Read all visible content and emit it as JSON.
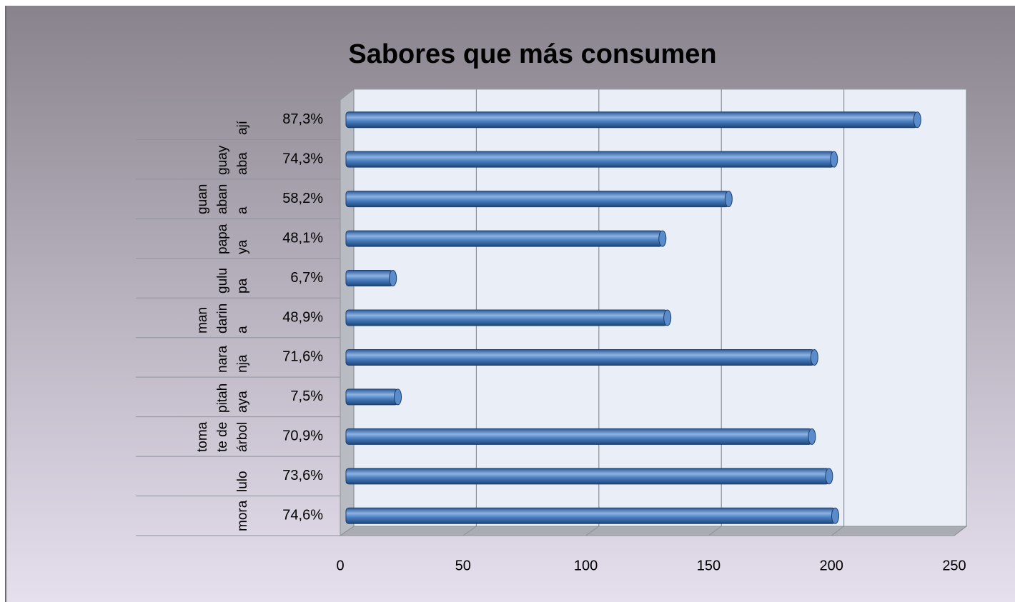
{
  "chart_data": {
    "type": "bar3d_horizontal",
    "title": "Sabores que más consumen",
    "categories": [
      "mora",
      "lulo",
      "tomate de árbol",
      "pitahaya",
      "naranja",
      "mandarina",
      "gulupa",
      "papaya",
      "guanabana",
      "guayaba",
      "ají"
    ],
    "values": [
      198.5,
      196,
      189,
      20,
      190,
      130,
      18,
      128,
      155,
      198,
      232
    ],
    "percent_labels": [
      "74,6%",
      "73,6%",
      "70,9%",
      "7,5%",
      "71,6%",
      "48,9%",
      "6,7%",
      "48,1%",
      "58,2%",
      "74,3%",
      "87,3%"
    ],
    "color": "#3a6db0",
    "xlim": [
      0,
      250
    ],
    "xticks": [
      0,
      50,
      100,
      150,
      200,
      250
    ],
    "grid": true
  }
}
